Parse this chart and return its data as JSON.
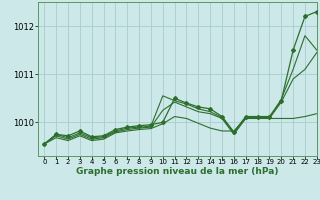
{
  "title": "Graphe pression niveau de la mer (hPa)",
  "background_color": "#cce8e8",
  "grid_color": "#aacccc",
  "line_color": "#2d6e2d",
  "xlim": [
    -0.5,
    23
  ],
  "ylim": [
    1009.3,
    1012.5
  ],
  "yticks": [
    1010,
    1011,
    1012
  ],
  "xtick_labels": [
    "0",
    "1",
    "2",
    "3",
    "4",
    "5",
    "6",
    "7",
    "8",
    "9",
    "10",
    "11",
    "12",
    "13",
    "14",
    "15",
    "16",
    "17",
    "18",
    "19",
    "20",
    "21",
    "22",
    "23"
  ],
  "series": [
    [
      1009.55,
      1009.75,
      1009.72,
      1009.82,
      1009.7,
      1009.72,
      1009.85,
      1009.9,
      1009.93,
      1009.95,
      1010.0,
      1010.5,
      1010.4,
      1010.32,
      1010.28,
      1010.12,
      1009.8,
      1010.12,
      1010.12,
      1010.12,
      1010.45,
      1011.5,
      1012.2,
      1012.3
    ],
    [
      1009.55,
      1009.75,
      1009.68,
      1009.78,
      1009.68,
      1009.7,
      1009.82,
      1009.88,
      1009.9,
      1009.92,
      1010.55,
      1010.45,
      1010.38,
      1010.28,
      1010.22,
      1010.1,
      1009.78,
      1010.1,
      1010.1,
      1010.1,
      1010.48,
      1011.1,
      1011.8,
      1011.5
    ],
    [
      1009.55,
      1009.72,
      1009.65,
      1009.75,
      1009.65,
      1009.68,
      1009.8,
      1009.85,
      1009.88,
      1009.9,
      1010.25,
      1010.42,
      1010.32,
      1010.22,
      1010.18,
      1010.08,
      1009.75,
      1010.08,
      1010.08,
      1010.08,
      1010.42,
      1010.9,
      1011.1,
      1011.45
    ],
    [
      1009.55,
      1009.68,
      1009.62,
      1009.72,
      1009.62,
      1009.65,
      1009.78,
      1009.82,
      1009.85,
      1009.87,
      1009.97,
      1010.12,
      1010.08,
      1009.98,
      1009.88,
      1009.82,
      1009.82,
      1010.08,
      1010.08,
      1010.08,
      1010.08,
      1010.08,
      1010.12,
      1010.18
    ]
  ],
  "marker_series": 0
}
